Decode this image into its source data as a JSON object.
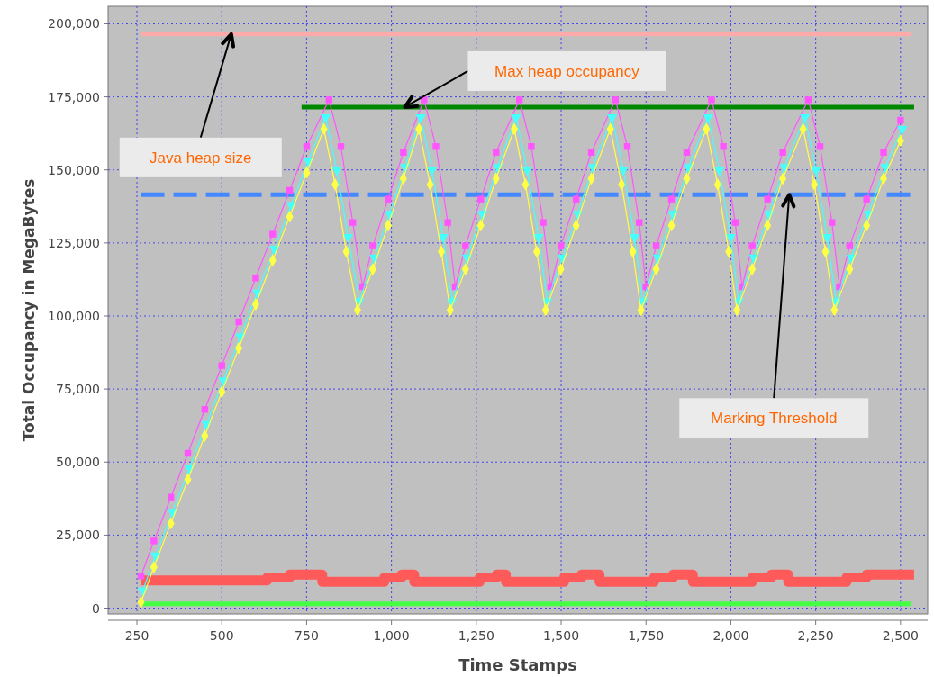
{
  "chart_data": {
    "type": "line",
    "xlabel": "Time Stamps",
    "ylabel": "Total Occupancy in MegaBytes",
    "xlim": [
      165,
      2580
    ],
    "ylim": [
      -2000,
      206000
    ],
    "xticks": [
      {
        "value": 250,
        "label": "250"
      },
      {
        "value": 500,
        "label": "500"
      },
      {
        "value": 750,
        "label": "750"
      },
      {
        "value": 1000,
        "label": "1,000"
      },
      {
        "value": 1250,
        "label": "1,250"
      },
      {
        "value": 1500,
        "label": "1,500"
      },
      {
        "value": 1750,
        "label": "1,750"
      },
      {
        "value": 2000,
        "label": "2,000"
      },
      {
        "value": 2250,
        "label": "2,250"
      },
      {
        "value": 2500,
        "label": "2,500"
      }
    ],
    "yticks": [
      {
        "value": 0,
        "label": "0"
      },
      {
        "value": 25000,
        "label": "25,000"
      },
      {
        "value": 50000,
        "label": "50,000"
      },
      {
        "value": 75000,
        "label": "75,000"
      },
      {
        "value": 100000,
        "label": "100,000"
      },
      {
        "value": 125000,
        "label": "125,000"
      },
      {
        "value": 150000,
        "label": "150,000"
      },
      {
        "value": 175000,
        "label": "175,000"
      },
      {
        "value": 200000,
        "label": "200,000"
      }
    ],
    "grid": true,
    "series": [
      {
        "type": "line",
        "color": "#ffaaaa",
        "marker": "none",
        "x": [
          262,
          2530
        ],
        "values": [
          196500,
          196500
        ]
      },
      {
        "type": "line",
        "color": "#008800",
        "marker": "none",
        "x": [
          735,
          2540
        ],
        "values": [
          171500,
          171500
        ]
      },
      {
        "type": "line",
        "color": "#4488ff",
        "marker": "none",
        "line_style": "dashed",
        "x": [
          262,
          2540
        ],
        "values": [
          141500,
          141500
        ]
      },
      {
        "type": "step",
        "color": "#ff5a5a",
        "marker": "none",
        "x": [
          262,
          634,
          700,
          796,
          979,
          1030,
          1067,
          1260,
          1310,
          1337,
          1509,
          1560,
          1613,
          1774,
          1830,
          1888,
          2063,
          2120,
          2169,
          2341,
          2400,
          2458,
          2540
        ],
        "values": [
          9500,
          10500,
          11500,
          9000,
          10500,
          11500,
          9000,
          10500,
          11500,
          9000,
          10500,
          11500,
          9000,
          10500,
          11500,
          9000,
          10500,
          11500,
          9000,
          10500,
          11500,
          11500,
          11500
        ]
      },
      {
        "type": "line",
        "color": "#44ff44",
        "marker": "none",
        "x": [
          262,
          2530
        ],
        "values": [
          1500,
          1500
        ]
      },
      {
        "type": "line",
        "color": "#ff55ff",
        "marker": "square",
        "x": [
          262,
          300,
          350,
          400,
          450,
          500,
          550,
          600,
          650,
          700,
          750,
          816,
          851,
          886,
          915,
          945,
          990,
          1035,
          1096,
          1131,
          1166,
          1188,
          1218,
          1263,
          1308,
          1377,
          1412,
          1447,
          1469,
          1499,
          1544,
          1589,
          1660,
          1695,
          1730,
          1750,
          1780,
          1825,
          1870,
          1943,
          1978,
          2013,
          2033,
          2063,
          2108,
          2153,
          2228,
          2263,
          2298,
          2320,
          2350,
          2400,
          2450,
          2500
        ],
        "values": [
          11000,
          23000,
          38000,
          53000,
          68000,
          83000,
          98000,
          113000,
          128000,
          143000,
          158000,
          174000,
          158000,
          132000,
          110000,
          124000,
          140000,
          156000,
          174000,
          158000,
          132000,
          110000,
          124000,
          140000,
          156000,
          174000,
          158000,
          132000,
          110000,
          124000,
          140000,
          156000,
          174000,
          158000,
          132000,
          110000,
          124000,
          140000,
          156000,
          174000,
          158000,
          132000,
          110000,
          124000,
          140000,
          156000,
          174000,
          158000,
          132000,
          110000,
          124000,
          140000,
          156000,
          167000
        ]
      },
      {
        "type": "line",
        "color": "#44ffff",
        "marker": "triangle",
        "x": [
          267,
          305,
          355,
          405,
          455,
          505,
          555,
          605,
          655,
          705,
          755,
          806,
          839,
          872,
          905,
          950,
          995,
          1040,
          1086,
          1119,
          1152,
          1178,
          1223,
          1268,
          1313,
          1367,
          1400,
          1433,
          1459,
          1504,
          1549,
          1594,
          1650,
          1683,
          1716,
          1740,
          1785,
          1830,
          1875,
          1933,
          1966,
          1999,
          2023,
          2068,
          2113,
          2158,
          2218,
          2251,
          2284,
          2310,
          2355,
          2405,
          2455,
          2505
        ],
        "values": [
          6000,
          18000,
          33000,
          48000,
          63000,
          78000,
          93000,
          108000,
          123000,
          138000,
          153000,
          168000,
          150000,
          127000,
          105000,
          120000,
          135000,
          151000,
          168000,
          150000,
          127000,
          105000,
          120000,
          135000,
          151000,
          168000,
          150000,
          127000,
          105000,
          120000,
          135000,
          151000,
          168000,
          150000,
          127000,
          105000,
          120000,
          135000,
          151000,
          168000,
          150000,
          127000,
          105000,
          120000,
          135000,
          151000,
          168000,
          150000,
          127000,
          105000,
          120000,
          135000,
          151000,
          164000
        ]
      },
      {
        "type": "line",
        "color": "#ffff44",
        "marker": "diamond",
        "x": [
          262,
          300,
          350,
          400,
          450,
          500,
          550,
          600,
          650,
          700,
          750,
          801,
          834,
          867,
          900,
          945,
          990,
          1035,
          1081,
          1114,
          1147,
          1173,
          1218,
          1263,
          1308,
          1362,
          1395,
          1428,
          1454,
          1499,
          1544,
          1589,
          1645,
          1678,
          1711,
          1735,
          1780,
          1825,
          1870,
          1928,
          1961,
          1994,
          2018,
          2063,
          2108,
          2153,
          2213,
          2246,
          2279,
          2305,
          2350,
          2400,
          2450,
          2500
        ],
        "values": [
          2000,
          14000,
          29000,
          44000,
          59000,
          74000,
          89000,
          104000,
          119000,
          134000,
          149000,
          164000,
          145000,
          122000,
          102000,
          116000,
          131000,
          147000,
          164000,
          145000,
          122000,
          102000,
          116000,
          131000,
          147000,
          164000,
          145000,
          122000,
          102000,
          116000,
          131000,
          147000,
          164000,
          145000,
          122000,
          102000,
          116000,
          131000,
          147000,
          164000,
          145000,
          122000,
          102000,
          116000,
          131000,
          147000,
          164000,
          145000,
          122000,
          102000,
          116000,
          131000,
          147000,
          160000
        ]
      }
    ],
    "annotations": [
      {
        "text": "Java heap size",
        "x": 528,
        "y": 196500
      },
      {
        "text": "Max heap occupancy",
        "x": 1517,
        "y": 171500
      },
      {
        "text": "Marking Threshold",
        "x": 2172,
        "y": 141500
      }
    ]
  }
}
